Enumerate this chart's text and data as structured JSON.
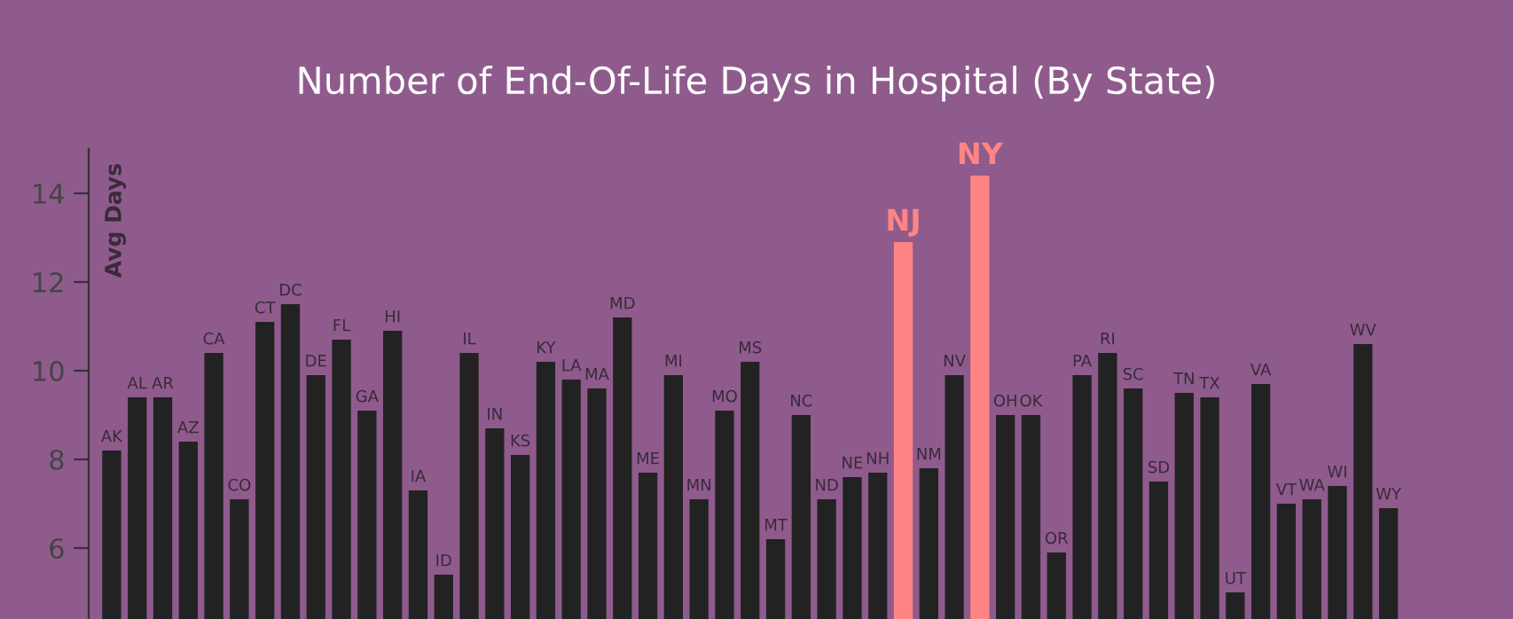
{
  "chart_data": {
    "type": "bar",
    "title": "Number of End-Of-Life Days in Hospital (By State)",
    "ylabel": "Avg Days",
    "categories": [
      "AK",
      "AL",
      "AR",
      "AZ",
      "CA",
      "CO",
      "CT",
      "DC",
      "DE",
      "FL",
      "GA",
      "HI",
      "IA",
      "ID",
      "IL",
      "IN",
      "KS",
      "KY",
      "LA",
      "MA",
      "MD",
      "ME",
      "MI",
      "MN",
      "MO",
      "MS",
      "MT",
      "NC",
      "ND",
      "NE",
      "NH",
      "NJ",
      "NM",
      "NV",
      "NY",
      "OH",
      "OK",
      "OR",
      "PA",
      "RI",
      "SC",
      "SD",
      "TN",
      "TX",
      "UT",
      "VA",
      "VT",
      "WA",
      "WI",
      "WV",
      "WY"
    ],
    "values": [
      8.2,
      9.4,
      9.4,
      8.4,
      10.4,
      7.1,
      11.1,
      11.5,
      9.9,
      10.7,
      9.1,
      10.9,
      7.3,
      5.4,
      10.4,
      8.7,
      8.1,
      10.2,
      9.8,
      9.6,
      11.2,
      7.7,
      9.9,
      7.1,
      9.1,
      10.2,
      6.2,
      9.0,
      7.1,
      7.6,
      7.7,
      12.9,
      7.8,
      9.9,
      14.4,
      9.0,
      9.0,
      5.9,
      9.9,
      10.4,
      9.6,
      7.5,
      9.5,
      9.4,
      5.0,
      9.7,
      7.0,
      7.1,
      7.4,
      10.6,
      6.9
    ],
    "colors": [
      "#222222",
      "#222222",
      "#222222",
      "#222222",
      "#222222",
      "#222222",
      "#222222",
      "#222222",
      "#222222",
      "#222222",
      "#222222",
      "#222222",
      "#222222",
      "#222222",
      "#222222",
      "#222222",
      "#222222",
      "#222222",
      "#222222",
      "#222222",
      "#222222",
      "#222222",
      "#222222",
      "#222222",
      "#222222",
      "#222222",
      "#222222",
      "#222222",
      "#222222",
      "#222222",
      "#222222",
      "#ff8585",
      "#222222",
      "#222222",
      "#ff8585",
      "#222222",
      "#222222",
      "#222222",
      "#222222",
      "#222222",
      "#222222",
      "#222222",
      "#222222",
      "#222222",
      "#222222",
      "#222222",
      "#222222",
      "#222222",
      "#222222",
      "#222222",
      "#222222"
    ],
    "ylim": [
      4.4,
      15
    ],
    "yticks": [
      6,
      8,
      10,
      12,
      14
    ],
    "grid": false,
    "legend": false
  }
}
